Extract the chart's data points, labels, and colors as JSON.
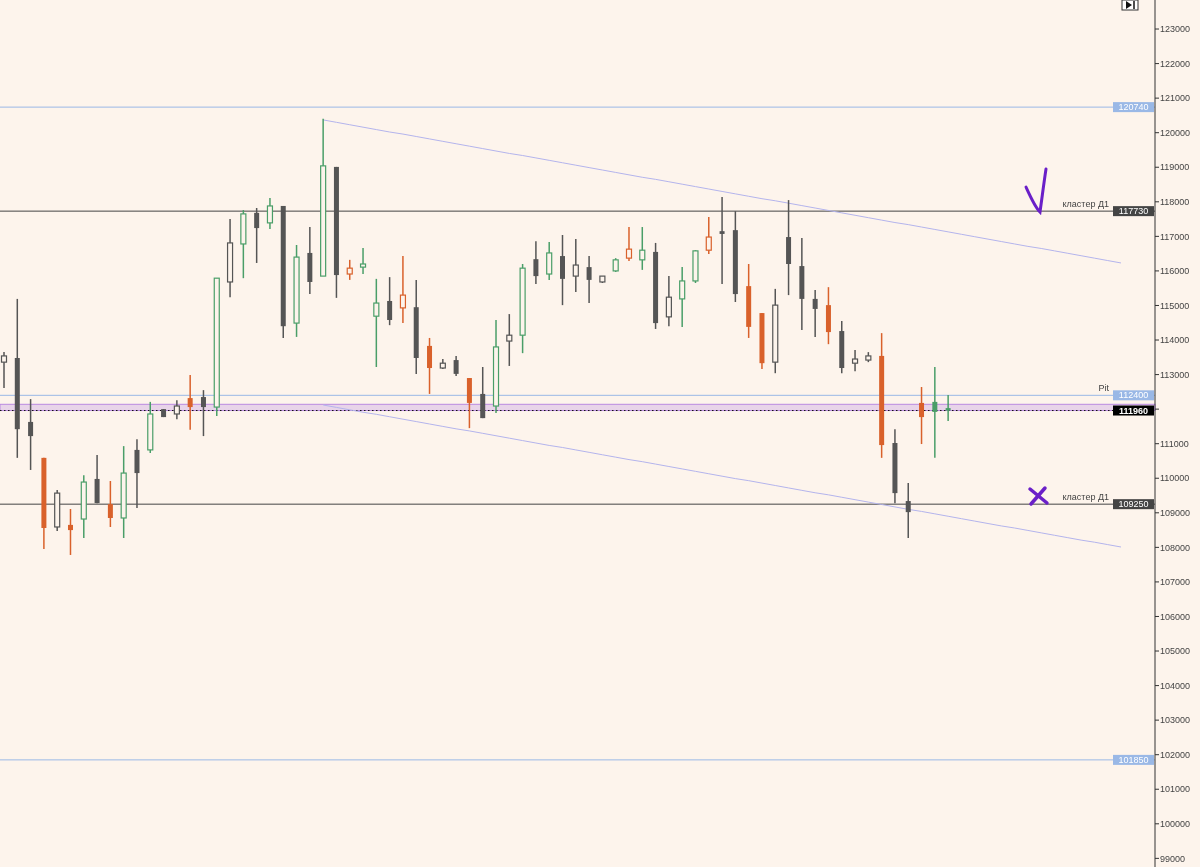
{
  "chart_data": {
    "type": "candlestick",
    "categories": [
      null,
      null,
      null,
      null,
      null,
      null,
      null,
      null,
      null,
      null,
      null,
      null,
      null,
      null,
      null,
      null,
      null,
      null,
      null,
      null,
      null,
      null,
      null,
      null,
      null,
      null,
      null,
      null,
      null,
      null,
      null,
      null,
      null,
      null,
      null,
      null,
      null,
      null,
      null,
      null,
      null,
      null,
      null,
      null,
      null,
      null,
      null,
      null,
      null,
      null,
      null,
      null,
      null,
      null,
      null,
      null,
      null,
      null,
      null,
      null,
      null,
      null,
      null,
      null,
      null,
      null,
      null,
      null,
      null,
      null,
      null,
      null,
      null,
      null,
      null,
      null,
      null,
      null,
      null,
      null,
      null,
      null,
      null,
      null,
      null
    ],
    "ohlc": [
      [
        113360,
        113650,
        112610,
        113540
      ],
      [
        113480,
        115190,
        110590,
        111420
      ],
      [
        111630,
        112290,
        110240,
        111220
      ],
      [
        110590,
        110590,
        107950,
        108560
      ],
      [
        108590,
        109660,
        108470,
        109570
      ],
      [
        108650,
        109110,
        107780,
        108500
      ],
      [
        108820,
        110090,
        108270,
        109890
      ],
      [
        109980,
        110670,
        109280,
        109280
      ],
      [
        109250,
        109920,
        108590,
        108850
      ],
      [
        108850,
        110930,
        108270,
        110150
      ],
      [
        110820,
        111130,
        109140,
        110150
      ],
      [
        110820,
        112210,
        110730,
        111860
      ],
      [
        112000,
        112000,
        111770,
        111770
      ],
      [
        111860,
        112260,
        111710,
        112090
      ],
      [
        112320,
        112990,
        111400,
        112060
      ],
      [
        112350,
        112550,
        111220,
        112060
      ],
      [
        112060,
        115790,
        111800,
        115790
      ],
      [
        115680,
        117500,
        115240,
        116810
      ],
      [
        116780,
        117760,
        115790,
        117650
      ],
      [
        117680,
        117820,
        116230,
        117240
      ],
      [
        117390,
        118110,
        117210,
        117880
      ],
      [
        117880,
        117880,
        114060,
        114400
      ],
      [
        114490,
        116750,
        114090,
        116400
      ],
      [
        116520,
        117270,
        115330,
        115680
      ],
      [
        115850,
        120400,
        115850,
        119040
      ],
      [
        119010,
        119010,
        115220,
        115880
      ],
      [
        115910,
        116320,
        115740,
        116080
      ],
      [
        116110,
        116660,
        115910,
        116200
      ],
      [
        114690,
        115770,
        113220,
        115070
      ],
      [
        115130,
        115820,
        114430,
        114580
      ],
      [
        114930,
        116430,
        114490,
        115300
      ],
      [
        114950,
        115740,
        113020,
        113480
      ],
      [
        113830,
        114060,
        112440,
        113190
      ],
      [
        113190,
        113450,
        113160,
        113330
      ],
      [
        113420,
        113540,
        112960,
        113020
      ],
      [
        112900,
        112900,
        111450,
        112180
      ],
      [
        112440,
        113220,
        111740,
        111740
      ],
      [
        112090,
        114580,
        111890,
        113800
      ],
      [
        113970,
        114750,
        113250,
        114140
      ],
      [
        114140,
        116200,
        113620,
        116080
      ],
      [
        116340,
        116860,
        115620,
        115850
      ],
      [
        115910,
        116840,
        115740,
        116520
      ],
      [
        116430,
        117040,
        115010,
        115770
      ],
      [
        115850,
        116920,
        115390,
        116170
      ],
      [
        116110,
        116430,
        115070,
        115740
      ],
      [
        115680,
        115850,
        115650,
        115850
      ],
      [
        116000,
        116370,
        115970,
        116320
      ],
      [
        116370,
        117270,
        116290,
        116630
      ],
      [
        116320,
        117270,
        116030,
        116600
      ],
      [
        116550,
        116810,
        114320,
        114490
      ],
      [
        114670,
        115850,
        114400,
        115240
      ],
      [
        115190,
        116110,
        114380,
        115710
      ],
      [
        115710,
        116600,
        115650,
        116580
      ],
      [
        116600,
        117560,
        116490,
        116980
      ],
      [
        117150,
        118140,
        115620,
        117070
      ],
      [
        117180,
        117730,
        115100,
        115330
      ],
      [
        115560,
        116200,
        114060,
        114380
      ],
      [
        114780,
        114780,
        113160,
        113330
      ],
      [
        113360,
        115480,
        113040,
        115010
      ],
      [
        116980,
        118050,
        115300,
        116200
      ],
      [
        116140,
        116950,
        114290,
        115190
      ],
      [
        115190,
        115450,
        114090,
        114900
      ],
      [
        115010,
        115530,
        113880,
        114230
      ],
      [
        114260,
        114550,
        113040,
        113190
      ],
      [
        113330,
        113710,
        113100,
        113450
      ],
      [
        113420,
        113650,
        113360,
        113540
      ],
      [
        113540,
        114200,
        110590,
        110960
      ],
      [
        111020,
        111420,
        109280,
        109570
      ],
      [
        109340,
        109860,
        108270,
        109020
      ],
      [
        112180,
        112640,
        110990,
        111770
      ],
      [
        112210,
        113220,
        110590,
        111920
      ],
      [
        112030,
        112410,
        111660,
        111960
      ],
      null,
      null,
      null,
      null,
      null,
      null,
      null,
      null,
      null,
      null,
      null,
      null,
      null
    ],
    "colors": [
      "#555555",
      "#555555",
      "#555555",
      "#d9612b",
      "#555555",
      "#d9612b",
      "#4a9e68",
      "#555555",
      "#d9612b",
      "#4a9e68",
      "#555555",
      "#4a9e68",
      "#555555",
      "#555555",
      "#d9612b",
      "#555555",
      "#4a9e68",
      "#555555",
      "#4a9e68",
      "#555555",
      "#4a9e68",
      "#555555",
      "#4a9e68",
      "#555555",
      "#4a9e68",
      "#555555",
      "#d9612b",
      "#4a9e68",
      "#4a9e68",
      "#555555",
      "#d9612b",
      "#555555",
      "#d9612b",
      "#555555",
      "#555555",
      "#d9612b",
      "#555555",
      "#4a9e68",
      "#555555",
      "#4a9e68",
      "#555555",
      "#4a9e68",
      "#555555",
      "#555555",
      "#555555",
      "#555555",
      "#4a9e68",
      "#d9612b",
      "#4a9e68",
      "#555555",
      "#555555",
      "#4a9e68",
      "#4a9e68",
      "#d9612b",
      "#555555",
      "#555555",
      "#d9612b",
      "#d9612b",
      "#555555",
      "#555555",
      "#555555",
      "#555555",
      "#d9612b",
      "#555555",
      "#555555",
      "#555555",
      "#d9612b",
      "#555555",
      "#555555",
      "#d9612b",
      "#4a9e68",
      "#4a9e68",
      null,
      null,
      null,
      null,
      null,
      null,
      null,
      null,
      null,
      null,
      null,
      null,
      null
    ],
    "series": [
      {
        "type": "line",
        "color": "#b4b4ec",
        "values": [
          null,
          null,
          null,
          null,
          null,
          null,
          null,
          null,
          null,
          null,
          null,
          null,
          null,
          null,
          null,
          null,
          null,
          null,
          null,
          null,
          null,
          null,
          null,
          null,
          120370,
          120300,
          120230,
          120160,
          120090,
          120020,
          119960,
          119890,
          119820,
          119750,
          119680,
          119610,
          119540,
          119470,
          119400,
          119340,
          119270,
          119200,
          119130,
          119060,
          118990,
          118920,
          118850,
          118780,
          118710,
          118650,
          118580,
          118510,
          118440,
          118370,
          118300,
          118230,
          118160,
          118090,
          118030,
          117960,
          117890,
          117820,
          117750,
          117680,
          117610,
          117540,
          117470,
          117400,
          117340,
          117270,
          117200,
          117130,
          117060,
          116990,
          116920,
          116850,
          116780,
          116710,
          116650,
          116580,
          116510,
          116440,
          116370,
          116300,
          116230
        ]
      },
      {
        "type": "line",
        "color": "#b4b4ec",
        "values": [
          null,
          null,
          null,
          null,
          null,
          null,
          null,
          null,
          null,
          null,
          null,
          null,
          null,
          null,
          null,
          null,
          null,
          null,
          null,
          null,
          null,
          null,
          null,
          null,
          112120,
          112050,
          111980,
          111910,
          111850,
          111780,
          111710,
          111640,
          111570,
          111500,
          111430,
          111370,
          111300,
          111230,
          111160,
          111090,
          111020,
          110950,
          110890,
          110820,
          110750,
          110680,
          110610,
          110540,
          110480,
          110410,
          110340,
          110270,
          110200,
          110130,
          110060,
          109990,
          109930,
          109860,
          109790,
          109720,
          109650,
          109580,
          109520,
          109450,
          109380,
          109310,
          109240,
          109170,
          109100,
          109040,
          108970,
          108900,
          108830,
          108760,
          108690,
          108620,
          108560,
          108490,
          108420,
          108350,
          108280,
          108210,
          108150,
          108080,
          108010
        ]
      }
    ],
    "ylim": [
      98750,
      123840
    ],
    "yticks": [
      99000,
      100000,
      101000,
      102000,
      103000,
      104000,
      105000,
      106000,
      107000,
      108000,
      109000,
      110000,
      111000,
      {
        "value": 112000,
        "label": null
      },
      113000,
      114000,
      115000,
      116000,
      117000,
      118000,
      119000,
      120000,
      121000,
      122000,
      123000
    ],
    "ref_lines": [
      {
        "axis": "y",
        "value": 120740,
        "label": "120740",
        "color": "#9ab8e6",
        "line_style": "solid"
      },
      {
        "axis": "y",
        "value": 117730,
        "label": "117730",
        "color": "#444444",
        "line_style": "solid"
      },
      {
        "axis": "y",
        "value": 112400,
        "label": "112400",
        "color": "#9ab8e6",
        "line_style": "solid"
      },
      {
        "axis": "y",
        "value": 111960,
        "label": "111960",
        "color": "#111111",
        "line_style": "dotted"
      },
      {
        "axis": "y",
        "value": 109250,
        "label": "109250",
        "color": "#444444",
        "line_style": "solid"
      },
      {
        "axis": "y",
        "value": 101850,
        "label": "101850",
        "color": "#9ab8e6",
        "line_style": "solid"
      }
    ],
    "annotations": [
      {
        "text": "кластер Д1",
        "y": 117730
      },
      {
        "text": "Pit",
        "y": 112400
      },
      {
        "text": "кластер Д1",
        "y": 109250
      }
    ],
    "bands": [
      {
        "axis": "y",
        "from": 111960,
        "to": 112140,
        "label": null,
        "color": "#b98ae0"
      }
    ],
    "grid": false
  }
}
